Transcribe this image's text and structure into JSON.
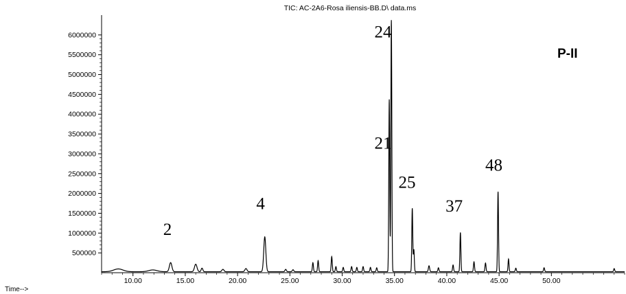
{
  "chart_data": {
    "type": "line",
    "title": "TIC: AC-2A6-Rosa iliensis-BB.D\\ data.ms",
    "panel_label": "P-II",
    "xlabel": "Time-->",
    "ylabel": "",
    "xlim": [
      7.0,
      57.0
    ],
    "ylim": [
      0,
      6500000
    ],
    "x_ticks": [
      10,
      15,
      20,
      25,
      30,
      35,
      40,
      45,
      50
    ],
    "x_tick_labels": [
      "10.00",
      "15.00",
      "20.00",
      "25.00",
      "30.00",
      "35.00",
      "40.00",
      "45.00",
      "50.00"
    ],
    "y_ticks": [
      500000,
      1000000,
      1500000,
      2000000,
      2500000,
      3000000,
      3500000,
      4000000,
      4500000,
      5000000,
      5500000,
      6000000
    ],
    "y_tick_labels": [
      "500000",
      "1000000",
      "1500000",
      "2000000",
      "2500000",
      "3000000",
      "3500000",
      "4000000",
      "4500000",
      "5000000",
      "5500000",
      "6000000"
    ],
    "grid": false,
    "baseline": 25000,
    "peaks": [
      {
        "x": 8.6,
        "y": 70000,
        "w": 0.45
      },
      {
        "x": 11.9,
        "y": 45000,
        "w": 0.4
      },
      {
        "x": 13.6,
        "y": 230000,
        "w": 0.12
      },
      {
        "x": 16.0,
        "y": 190000,
        "w": 0.12
      },
      {
        "x": 16.6,
        "y": 90000,
        "w": 0.08
      },
      {
        "x": 18.6,
        "y": 60000,
        "w": 0.1
      },
      {
        "x": 20.8,
        "y": 80000,
        "w": 0.1
      },
      {
        "x": 22.6,
        "y": 880000,
        "w": 0.1
      },
      {
        "x": 24.6,
        "y": 60000,
        "w": 0.07
      },
      {
        "x": 25.3,
        "y": 50000,
        "w": 0.07
      },
      {
        "x": 27.2,
        "y": 230000,
        "w": 0.05
      },
      {
        "x": 27.7,
        "y": 280000,
        "w": 0.05
      },
      {
        "x": 29.0,
        "y": 380000,
        "w": 0.05
      },
      {
        "x": 29.4,
        "y": 130000,
        "w": 0.05
      },
      {
        "x": 30.1,
        "y": 110000,
        "w": 0.05
      },
      {
        "x": 30.9,
        "y": 130000,
        "w": 0.05
      },
      {
        "x": 31.4,
        "y": 110000,
        "w": 0.05
      },
      {
        "x": 32.0,
        "y": 130000,
        "w": 0.05
      },
      {
        "x": 32.7,
        "y": 110000,
        "w": 0.05
      },
      {
        "x": 33.3,
        "y": 100000,
        "w": 0.05
      },
      {
        "x": 34.5,
        "y": 4350000,
        "w": 0.045
      },
      {
        "x": 34.7,
        "y": 6350000,
        "w": 0.045
      },
      {
        "x": 36.7,
        "y": 1600000,
        "w": 0.045
      },
      {
        "x": 36.85,
        "y": 560000,
        "w": 0.045
      },
      {
        "x": 38.3,
        "y": 150000,
        "w": 0.06
      },
      {
        "x": 39.2,
        "y": 100000,
        "w": 0.05
      },
      {
        "x": 40.6,
        "y": 170000,
        "w": 0.05
      },
      {
        "x": 41.3,
        "y": 990000,
        "w": 0.045
      },
      {
        "x": 42.6,
        "y": 250000,
        "w": 0.05
      },
      {
        "x": 43.7,
        "y": 220000,
        "w": 0.05
      },
      {
        "x": 44.9,
        "y": 2020000,
        "w": 0.045
      },
      {
        "x": 45.9,
        "y": 320000,
        "w": 0.045
      },
      {
        "x": 46.6,
        "y": 90000,
        "w": 0.05
      },
      {
        "x": 49.3,
        "y": 100000,
        "w": 0.05
      },
      {
        "x": 56.0,
        "y": 80000,
        "w": 0.05
      }
    ],
    "annotations": [
      {
        "text": "2",
        "x": 13.3,
        "y": 950000
      },
      {
        "text": "4",
        "x": 22.2,
        "y": 1600000
      },
      {
        "text": "21",
        "x": 33.9,
        "y": 3130000
      },
      {
        "text": "24",
        "x": 33.9,
        "y": 5940000
      },
      {
        "text": "25",
        "x": 36.2,
        "y": 2140000
      },
      {
        "text": "37",
        "x": 40.7,
        "y": 1540000
      },
      {
        "text": "48",
        "x": 44.5,
        "y": 2570000
      }
    ],
    "colors": {
      "trace": "#000000",
      "axis": "#000000",
      "background": "#ffffff"
    }
  }
}
